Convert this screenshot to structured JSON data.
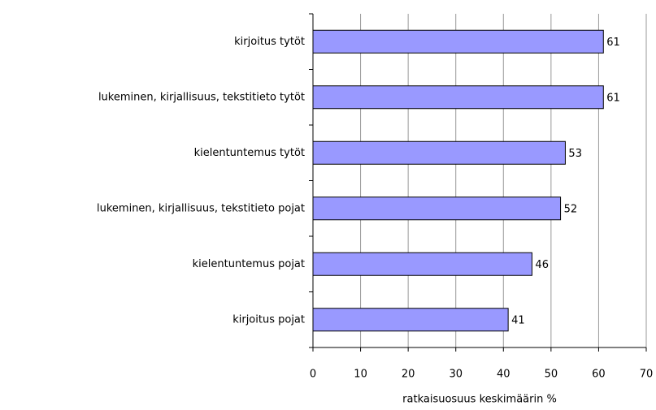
{
  "chart_data": {
    "type": "bar",
    "orientation": "horizontal",
    "x_label": "ratkaisuosuus keskimäärin %",
    "categories": [
      "kirjoitus tytöt",
      "lukeminen, kirjallisuus, tekstitieto tytöt",
      "kielentuntemus tytöt",
      "lukeminen, kirjallisuus, tekstitieto pojat",
      "kielentuntemus pojat",
      "kirjoitus pojat"
    ],
    "values": [
      61,
      61,
      53,
      52,
      46,
      41
    ],
    "color": "#9999ff",
    "xlim": [
      0,
      70
    ],
    "xticks": [
      0,
      10,
      20,
      30,
      40,
      50,
      60,
      70
    ],
    "grid": true
  }
}
